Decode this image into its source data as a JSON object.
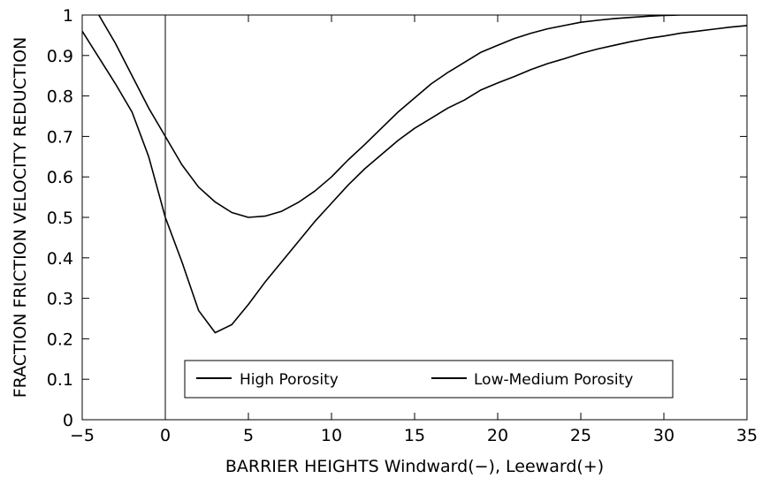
{
  "chart_data": {
    "type": "line",
    "title": "",
    "xlabel": "BARRIER HEIGHTS Windward(−),  Leeward(+)",
    "ylabel": "FRACTION FRICTION VELOCITY REDUCTION",
    "xlim": [
      -5,
      35
    ],
    "ylim": [
      0,
      1
    ],
    "xticks": [
      -5,
      0,
      5,
      10,
      15,
      20,
      25,
      30,
      35
    ],
    "yticks": [
      0,
      0.1,
      0.2,
      0.3,
      0.4,
      0.5,
      0.6,
      0.7,
      0.8,
      0.9,
      1
    ],
    "xtick_labels": [
      "−5",
      "0",
      "5",
      "10",
      "15",
      "20",
      "25",
      "30",
      "35"
    ],
    "ytick_labels": [
      "0",
      "0.1",
      "0.2",
      "0.3",
      "0.4",
      "0.5",
      "0.6",
      "0.7",
      "0.8",
      "0.9",
      "1"
    ],
    "reference_line_x": 0,
    "grid": false,
    "legend_position": "bottom-center",
    "colors": {
      "line": "#000000",
      "axis": "#000000",
      "background": "#ffffff"
    },
    "series": [
      {
        "name": "High Porosity",
        "x": [
          -5,
          -4,
          -3,
          -2,
          -1,
          0,
          1,
          2,
          3,
          4,
          5,
          6,
          7,
          8,
          9,
          10,
          11,
          12,
          13,
          14,
          15,
          16,
          17,
          18,
          19,
          20,
          21,
          22,
          23,
          24,
          25,
          26,
          27,
          28,
          29,
          30,
          31,
          32,
          33,
          34,
          35
        ],
        "y": [
          0.96,
          0.895,
          0.83,
          0.76,
          0.65,
          0.5,
          0.39,
          0.27,
          0.215,
          0.235,
          0.285,
          0.34,
          0.39,
          0.44,
          0.49,
          0.535,
          0.58,
          0.62,
          0.655,
          0.69,
          0.72,
          0.745,
          0.77,
          0.79,
          0.815,
          0.832,
          0.848,
          0.865,
          0.88,
          0.892,
          0.905,
          0.916,
          0.925,
          0.934,
          0.942,
          0.948,
          0.955,
          0.96,
          0.965,
          0.97,
          0.974
        ]
      },
      {
        "name": "Low-Medium Porosity",
        "x": [
          -5,
          -4,
          -3,
          -2,
          -1,
          0,
          1,
          2,
          3,
          4,
          5,
          6,
          7,
          8,
          9,
          10,
          11,
          12,
          13,
          14,
          15,
          16,
          17,
          18,
          19,
          20,
          21,
          22,
          23,
          24,
          25,
          26,
          27,
          28,
          29,
          30,
          31,
          32,
          33,
          34,
          35
        ],
        "y": [
          1.05,
          1.0,
          0.93,
          0.85,
          0.77,
          0.7,
          0.63,
          0.575,
          0.538,
          0.512,
          0.5,
          0.503,
          0.515,
          0.537,
          0.565,
          0.6,
          0.642,
          0.68,
          0.72,
          0.76,
          0.795,
          0.83,
          0.858,
          0.883,
          0.908,
          0.925,
          0.942,
          0.955,
          0.966,
          0.974,
          0.982,
          0.987,
          0.991,
          0.994,
          0.997,
          0.999,
          1.0,
          1.0,
          1.0,
          1.0,
          1.0
        ]
      }
    ]
  }
}
